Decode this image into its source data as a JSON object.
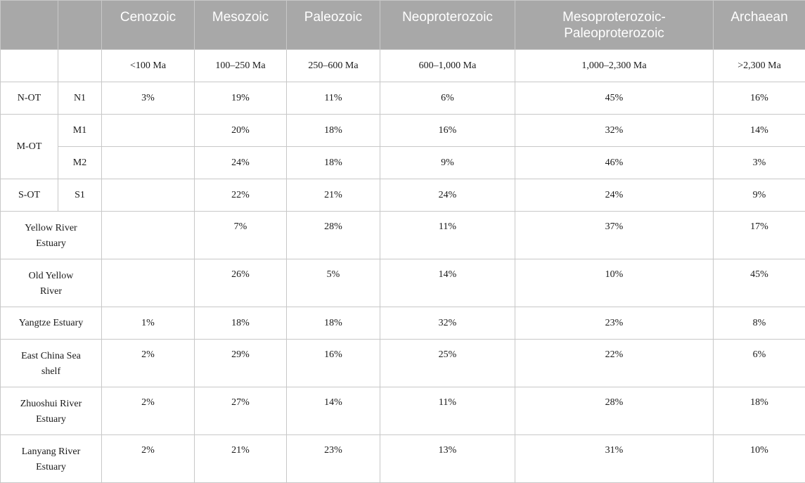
{
  "table": {
    "header": [
      "",
      "",
      "Cenozoic",
      "Mesozoic",
      "Paleozoic",
      "Neoproterozoic",
      "Mesoproterozoic-Paleoproterozoic",
      "Archaean"
    ],
    "header_lines": {
      "mesopaleo_line1": "Mesoproterozoic-",
      "mesopaleo_line2": "Paleoproterozoic"
    },
    "ranges": [
      "",
      "",
      "<100 Ma",
      "100–250 Ma",
      "250–600 Ma",
      "600–1,000 Ma",
      "1,000–2,300 Ma",
      ">2,300 Ma"
    ],
    "groups": [
      {
        "group": "N-OT",
        "rows": [
          {
            "sub": "N1",
            "values": [
              "3%",
              "19%",
              "11%",
              "6%",
              "45%",
              "16%"
            ]
          }
        ]
      },
      {
        "group": "M-OT",
        "rows": [
          {
            "sub": "M1",
            "values": [
              "",
              "20%",
              "18%",
              "16%",
              "32%",
              "14%"
            ]
          },
          {
            "sub": "M2",
            "values": [
              "",
              "24%",
              "18%",
              "9%",
              "46%",
              "3%"
            ]
          }
        ]
      },
      {
        "group": "S-OT",
        "rows": [
          {
            "sub": "S1",
            "values": [
              "",
              "22%",
              "21%",
              "24%",
              "24%",
              "9%"
            ]
          }
        ]
      }
    ],
    "sources": [
      {
        "name_line1": "Yellow River",
        "name_line2": "Estuary",
        "values": [
          "",
          "7%",
          "28%",
          "11%",
          "37%",
          "17%"
        ]
      },
      {
        "name_line1": "Old Yellow",
        "name_line2": "River",
        "values": [
          "",
          "26%",
          "5%",
          "14%",
          "10%",
          "45%"
        ]
      },
      {
        "name_line1": "Yangtze Estuary",
        "name_line2": "",
        "values": [
          "1%",
          "18%",
          "18%",
          "32%",
          "23%",
          "8%"
        ]
      },
      {
        "name_line1": "East China Sea",
        "name_line2": "shelf",
        "values": [
          "2%",
          "29%",
          "16%",
          "25%",
          "22%",
          "6%"
        ]
      },
      {
        "name_line1": "Zhuoshui River",
        "name_line2": "Estuary",
        "values": [
          "2%",
          "27%",
          "14%",
          "11%",
          "28%",
          "18%"
        ]
      },
      {
        "name_line1": "Lanyang River",
        "name_line2": "Estuary",
        "values": [
          "2%",
          "21%",
          "23%",
          "13%",
          "31%",
          "10%"
        ]
      }
    ]
  }
}
